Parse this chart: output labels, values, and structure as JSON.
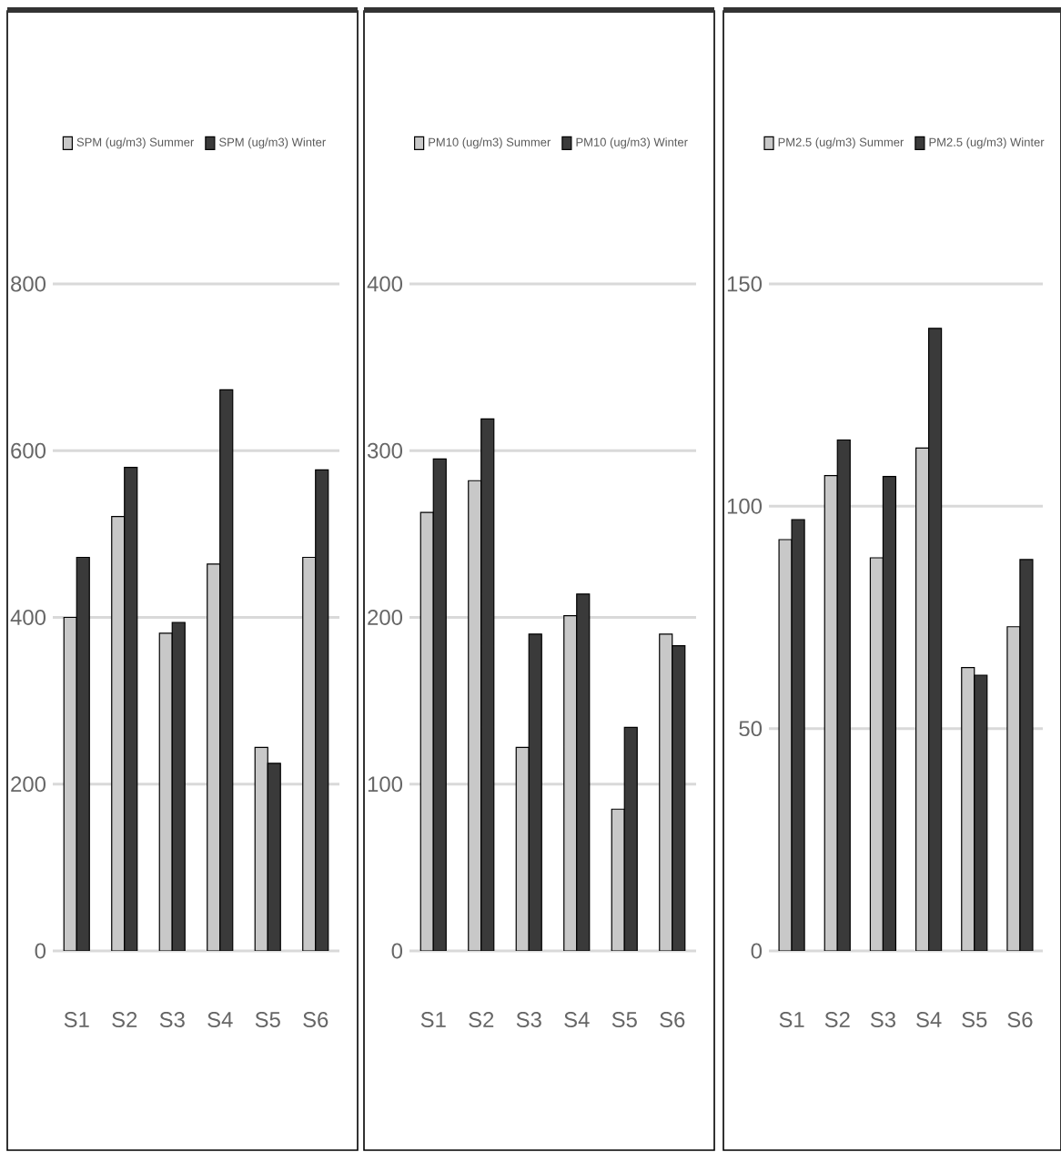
{
  "chart_data": [
    {
      "type": "bar",
      "categories": [
        "S1",
        "S2",
        "S3",
        "S4",
        "S5",
        "S6"
      ],
      "series": [
        {
          "name": "SPM (ug/m3) Summer",
          "color": "#c8c8c8",
          "values": [
            400,
            521,
            381,
            464,
            244,
            472
          ]
        },
        {
          "name": "SPM (ug/m3) Winter",
          "color": "#3a3a3a",
          "values": [
            472,
            580,
            394,
            673,
            225,
            577
          ]
        }
      ],
      "ylim": [
        0,
        800
      ],
      "yticks": [
        0,
        200,
        400,
        600,
        800
      ],
      "grid": "y",
      "legend": "top"
    },
    {
      "type": "bar",
      "categories": [
        "S1",
        "S2",
        "S3",
        "S4",
        "S5",
        "S6"
      ],
      "series": [
        {
          "name": "PM10 (ug/m3) Summer",
          "color": "#c8c8c8",
          "values": [
            263,
            282,
            122,
            201,
            85,
            190
          ]
        },
        {
          "name": "PM10 (ug/m3) Winter",
          "color": "#3a3a3a",
          "values": [
            295,
            319,
            190,
            214,
            134,
            183
          ]
        }
      ],
      "ylim": [
        0,
        400
      ],
      "yticks": [
        0,
        100,
        200,
        300,
        400
      ],
      "grid": "y",
      "legend": "top"
    },
    {
      "type": "bar",
      "categories": [
        "S1",
        "S2",
        "S3",
        "S4",
        "S5",
        "S6"
      ],
      "series": [
        {
          "name": "PM2.5 (ug/m3) Summer",
          "color": "#c8c8c8",
          "values": [
            92.5,
            106.9,
            88.4,
            113.1,
            63.7,
            72.9
          ]
        },
        {
          "name": "PM2.5 (ug/m3) Winter",
          "color": "#3a3a3a",
          "values": [
            97,
            114.9,
            106.7,
            140,
            62,
            88
          ]
        }
      ],
      "ylim": [
        0,
        150
      ],
      "yticks": [
        0,
        50,
        100,
        150
      ],
      "grid": "y",
      "legend": "top"
    }
  ]
}
